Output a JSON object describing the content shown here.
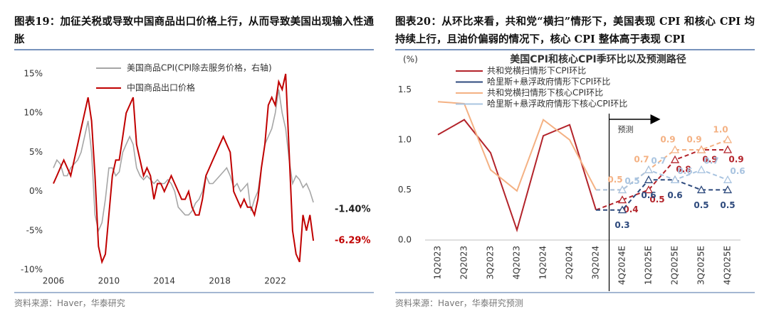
{
  "chart_data": [
    {
      "type": "line",
      "title": "图表19：加征关税或导致中国商品出口价格上行，从而导致美国出现输入性通胀",
      "source": "资料来源：Haver，华泰研究",
      "x": [
        2006,
        2006.25,
        2006.5,
        2006.75,
        2007,
        2007.25,
        2007.5,
        2007.75,
        2008,
        2008.25,
        2008.5,
        2008.75,
        2009,
        2009.25,
        2009.5,
        2009.75,
        2010,
        2010.25,
        2010.5,
        2010.75,
        2011,
        2011.25,
        2011.5,
        2011.75,
        2012,
        2012.25,
        2012.5,
        2012.75,
        2013,
        2013.25,
        2013.5,
        2013.75,
        2014,
        2014.25,
        2014.5,
        2014.75,
        2015,
        2015.25,
        2015.5,
        2015.75,
        2016,
        2016.25,
        2016.5,
        2016.75,
        2017,
        2017.25,
        2017.5,
        2017.75,
        2018,
        2018.25,
        2018.5,
        2018.75,
        2019,
        2019.25,
        2019.5,
        2019.75,
        2020,
        2020.25,
        2020.5,
        2020.75,
        2021,
        2021.25,
        2021.5,
        2021.75,
        2022,
        2022.25,
        2022.5,
        2022.75,
        2023,
        2023.25,
        2023.5,
        2023.75,
        2024,
        2024.25,
        2024.5,
        2024.75
      ],
      "xlim": [
        2006,
        2025
      ],
      "xticks": [
        2006,
        2010,
        2014,
        2018,
        2022
      ],
      "ylim": [
        -10.5,
        16.5
      ],
      "yticks": [
        {
          "value": -10,
          "label": "-10%"
        },
        {
          "value": -5,
          "label": "-5%"
        },
        {
          "value": 0,
          "label": "0%"
        },
        {
          "value": 5,
          "label": "5%"
        },
        {
          "value": 10,
          "label": "10%"
        },
        {
          "value": 15,
          "label": "15%"
        }
      ],
      "series": [
        {
          "name": "美国商品CPI(CPI除去服务价格，右轴)",
          "color": "#a6a6a6",
          "end_label": "-1.40%",
          "values": [
            3,
            4,
            3.5,
            2,
            2,
            3,
            3.5,
            4,
            5,
            7,
            9,
            5,
            -3,
            -5,
            -4,
            -1,
            3,
            3,
            2,
            2.5,
            5,
            6,
            7,
            6,
            3,
            2,
            1.5,
            2,
            1.5,
            1,
            1.5,
            1,
            1,
            1.5,
            1,
            0,
            -2,
            -2.5,
            -3,
            -3,
            -2.5,
            -1.5,
            -1,
            0,
            2,
            1,
            1,
            1.5,
            2,
            2.5,
            3,
            2,
            0.5,
            1,
            0,
            0.5,
            1,
            -2.5,
            -1,
            0,
            3,
            6,
            7,
            8,
            10,
            13,
            10,
            8,
            4,
            1,
            2,
            1.5,
            0.5,
            1,
            0,
            -1.4
          ]
        },
        {
          "name": "中国商品出口价格",
          "color": "#c00000",
          "end_label": "-6.29%",
          "values": [
            1,
            2,
            3,
            4,
            3,
            2,
            4,
            6,
            8,
            10,
            12,
            9,
            2,
            -7,
            -9,
            -8,
            -3,
            2,
            4,
            4,
            7,
            10,
            11,
            12,
            6,
            4,
            2,
            3,
            2,
            -1,
            1,
            1,
            0,
            1,
            2,
            1,
            0,
            -1,
            -1,
            0,
            -2,
            -3,
            -3,
            -1,
            2,
            3,
            4,
            5,
            6,
            7,
            6,
            5,
            0,
            -1,
            -2,
            -1,
            -2,
            -2,
            -3,
            -1,
            3,
            6,
            11,
            12,
            11,
            14,
            13,
            15,
            5,
            -5,
            -8,
            -9,
            -3,
            -5,
            -3,
            -6.29
          ]
        }
      ]
    },
    {
      "type": "line",
      "title": "图表20：从环比来看，共和党“横扫”情形下，美国表现 CPI 和核心 CPI 均持续上行，且油价偏弱的情况下，核心 CPI 整体高于表现 CPI",
      "subtitle": "美国CPI和核心CPI季环比以及预测路径",
      "y_label": "(%)",
      "annotation": "预测",
      "source": "资料来源：Haver，华泰研究预测",
      "categories": [
        "1Q2023",
        "2Q2023",
        "3Q2023",
        "4Q2023",
        "1Q2024",
        "2Q2024",
        "3Q2024",
        "4Q2024E",
        "1Q2025E",
        "2Q2025E",
        "3Q2025E",
        "4Q2025E"
      ],
      "ylim": [
        0,
        1.75
      ],
      "yticks": [
        {
          "value": 0,
          "label": "0.0"
        },
        0.5,
        {
          "value": 1,
          "label": "1.0"
        },
        1.5
      ],
      "series": [
        {
          "name": "共和党横扫情形下CPI环比",
          "color": "#b3232a",
          "values": [
            1.05,
            1.2,
            0.87,
            0.1,
            1.04,
            1.15,
            0.3,
            0.4,
            0.5,
            0.8,
            0.9,
            0.9
          ]
        },
        {
          "name": "哈里斯+悬浮政府情形下CPI环比",
          "color": "#2e4a7d",
          "values": [
            null,
            null,
            null,
            null,
            null,
            null,
            0.3,
            0.3,
            0.6,
            0.6,
            0.5,
            0.5
          ]
        },
        {
          "name": "共和党横扫情形下核心CPI环比",
          "color": "#f4b183",
          "values": [
            1.38,
            1.36,
            0.7,
            0.49,
            1.2,
            1.0,
            0.5,
            0.5,
            0.7,
            0.9,
            0.9,
            1.0
          ],
          "value_labels": [
            null,
            null,
            null,
            null,
            null,
            null,
            null,
            "0.5",
            "0.7",
            "0.9",
            "0.9",
            "1.0"
          ]
        },
        {
          "name": "哈里斯+悬浮政府情形下核心CPI环比",
          "color": "#a9c4e0",
          "values": [
            null,
            null,
            null,
            null,
            null,
            null,
            0.5,
            0.5,
            0.7,
            0.6,
            0.7,
            0.6
          ]
        }
      ]
    }
  ]
}
